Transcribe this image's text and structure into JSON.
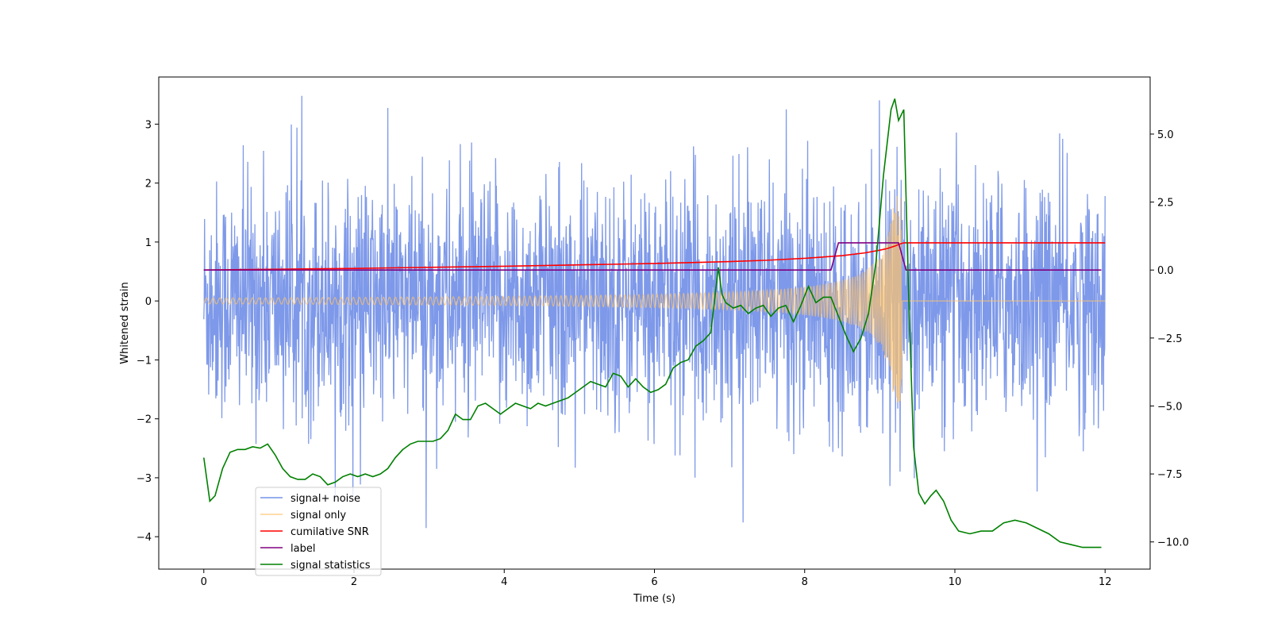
{
  "chart_data": {
    "type": "line",
    "title": "",
    "xlabel": "Time (s)",
    "ylabel": "Whitened strain",
    "ylabel_right": "",
    "xlim": [
      -0.6,
      12.6
    ],
    "ylim_left": [
      -4.55,
      3.8
    ],
    "ylim_right": [
      -11.0,
      7.1
    ],
    "x_ticks": [
      0,
      2,
      4,
      6,
      8,
      10,
      12
    ],
    "x_tick_labels": [
      "0",
      "2",
      "4",
      "6",
      "8",
      "10",
      "12"
    ],
    "y_ticks_left": [
      -4,
      -3,
      -2,
      -1,
      0,
      1,
      2,
      3
    ],
    "y_tick_labels_left": [
      "−4",
      "−3",
      "−2",
      "−1",
      "0",
      "1",
      "2",
      "3"
    ],
    "y_ticks_right": [
      -10,
      -7.5,
      -5,
      -2.5,
      0,
      2.5,
      5
    ],
    "y_tick_labels_right": [
      "−10.0",
      "−7.5",
      "−5.0",
      "−2.5",
      "0.0",
      "2.5",
      "5.0"
    ],
    "grid": false,
    "legend_position": "lower-left",
    "series": [
      {
        "name": "signal+ noise",
        "axis": "left",
        "color": "#7793e8",
        "description_kind": "noise",
        "x_range": [
          0,
          12
        ],
        "noise_envelope": [
          -2.6,
          2.6
        ],
        "peak_max": 3.48,
        "peak_min": -4.18
      },
      {
        "name": "signal only",
        "axis": "left",
        "color": "#ffc36b",
        "description_kind": "chirp",
        "x_range": [
          0,
          12
        ],
        "merger_time": 9.3,
        "amplitude_start": 0.05,
        "amplitude_peak": 1.8
      },
      {
        "name": "cumilative SNR",
        "axis": "right",
        "color": "#ff0000",
        "x": [
          0,
          1,
          2,
          3,
          4,
          5,
          6,
          7,
          7.5,
          8,
          8.5,
          8.8,
          9.0,
          9.1,
          9.2,
          9.28,
          9.32,
          10,
          11,
          12
        ],
        "values": [
          0.0,
          0.03,
          0.06,
          0.1,
          0.14,
          0.19,
          0.24,
          0.31,
          0.36,
          0.43,
          0.53,
          0.63,
          0.73,
          0.79,
          0.88,
          0.97,
          1.0,
          1.0,
          1.0,
          1.0
        ]
      },
      {
        "name": "label",
        "axis": "right",
        "color": "#800080",
        "x": [
          0,
          8.35,
          8.45,
          9.25,
          9.35,
          11.95
        ],
        "values": [
          0,
          0,
          1,
          1,
          0,
          0
        ]
      },
      {
        "name": "signal statistics",
        "axis": "right",
        "color": "#008000",
        "x": [
          0,
          0.08,
          0.15,
          0.25,
          0.35,
          0.45,
          0.55,
          0.65,
          0.75,
          0.85,
          0.95,
          1.05,
          1.15,
          1.25,
          1.35,
          1.45,
          1.55,
          1.65,
          1.75,
          1.85,
          1.95,
          2.05,
          2.15,
          2.25,
          2.35,
          2.45,
          2.55,
          2.65,
          2.75,
          2.85,
          2.95,
          3.05,
          3.15,
          3.25,
          3.35,
          3.45,
          3.55,
          3.65,
          3.75,
          3.85,
          3.95,
          4.05,
          4.15,
          4.25,
          4.35,
          4.45,
          4.55,
          4.65,
          4.75,
          4.85,
          4.95,
          5.05,
          5.15,
          5.25,
          5.35,
          5.45,
          5.55,
          5.65,
          5.75,
          5.85,
          5.95,
          6.05,
          6.15,
          6.25,
          6.35,
          6.45,
          6.55,
          6.65,
          6.75,
          6.85,
          6.9,
          6.95,
          7.05,
          7.15,
          7.25,
          7.35,
          7.45,
          7.55,
          7.65,
          7.75,
          7.85,
          7.95,
          8.05,
          8.15,
          8.25,
          8.35,
          8.45,
          8.55,
          8.65,
          8.75,
          8.85,
          8.95,
          9.05,
          9.15,
          9.2,
          9.25,
          9.32,
          9.38,
          9.45,
          9.52,
          9.6,
          9.68,
          9.75,
          9.85,
          9.95,
          10.05,
          10.2,
          10.35,
          10.5,
          10.65,
          10.8,
          10.95,
          11.1,
          11.25,
          11.4,
          11.55,
          11.7,
          11.85,
          11.95
        ],
        "values": [
          -6.9,
          -8.5,
          -8.3,
          -7.3,
          -6.7,
          -6.6,
          -6.6,
          -6.5,
          -6.55,
          -6.4,
          -6.8,
          -7.3,
          -7.6,
          -7.7,
          -7.7,
          -7.5,
          -7.6,
          -7.9,
          -7.8,
          -7.6,
          -7.5,
          -7.6,
          -7.5,
          -7.6,
          -7.5,
          -7.3,
          -6.9,
          -6.6,
          -6.4,
          -6.3,
          -6.3,
          -6.3,
          -6.2,
          -5.9,
          -5.3,
          -5.5,
          -5.5,
          -5.0,
          -4.9,
          -5.1,
          -5.3,
          -5.1,
          -4.9,
          -5.0,
          -5.1,
          -4.9,
          -5.0,
          -4.9,
          -4.8,
          -4.7,
          -4.5,
          -4.3,
          -4.1,
          -4.2,
          -4.3,
          -3.8,
          -3.9,
          -4.3,
          -4.0,
          -4.3,
          -4.5,
          -4.4,
          -4.2,
          -3.6,
          -3.4,
          -3.3,
          -2.8,
          -2.6,
          -2.3,
          0.1,
          -0.9,
          -1.2,
          -1.4,
          -1.3,
          -1.6,
          -1.4,
          -1.3,
          -1.7,
          -1.4,
          -1.3,
          -1.9,
          -1.3,
          -0.6,
          -1.2,
          -1.0,
          -1.0,
          -1.7,
          -2.4,
          -3.0,
          -2.5,
          -1.6,
          0.3,
          3.5,
          5.9,
          6.3,
          5.5,
          5.9,
          -0.5,
          -6.5,
          -8.2,
          -8.6,
          -8.3,
          -8.1,
          -8.5,
          -9.2,
          -9.6,
          -9.7,
          -9.6,
          -9.6,
          -9.3,
          -9.2,
          -9.3,
          -9.5,
          -9.7,
          -10.0,
          -10.1,
          -10.2,
          -10.2,
          -10.2
        ]
      }
    ]
  }
}
